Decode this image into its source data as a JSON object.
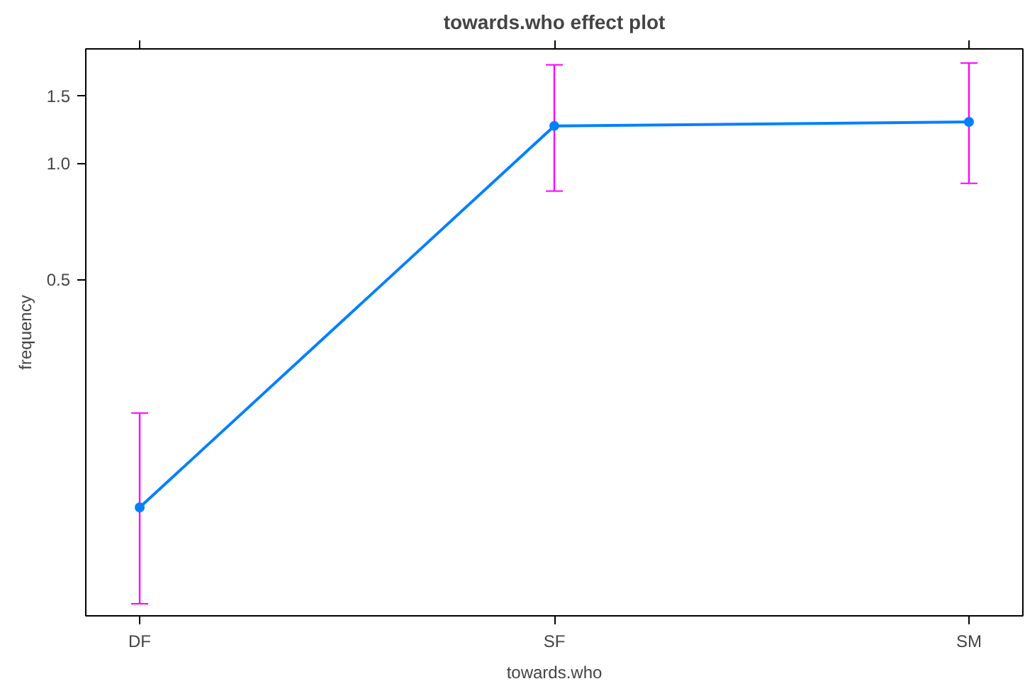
{
  "chart_data": {
    "type": "line",
    "title": "towards.who effect plot",
    "xlabel": "towards.who",
    "ylabel": "frequency",
    "categories": [
      "DF",
      "SF",
      "SM"
    ],
    "series": [
      {
        "color": "#0080ff",
        "values": [
          0.128,
          1.25,
          1.28
        ],
        "errors": [
          [
            0.072,
            0.225
          ],
          [
            0.847,
            1.8
          ],
          [
            0.887,
            1.82
          ]
        ]
      }
    ],
    "ylim": [
      0.067,
      1.98
    ],
    "yticks": [
      0.5,
      {
        "value": 1,
        "label": "1.0"
      },
      1.5
    ],
    "log": "y",
    "grid": false,
    "marker": "circle",
    "line_style": "solid"
  }
}
